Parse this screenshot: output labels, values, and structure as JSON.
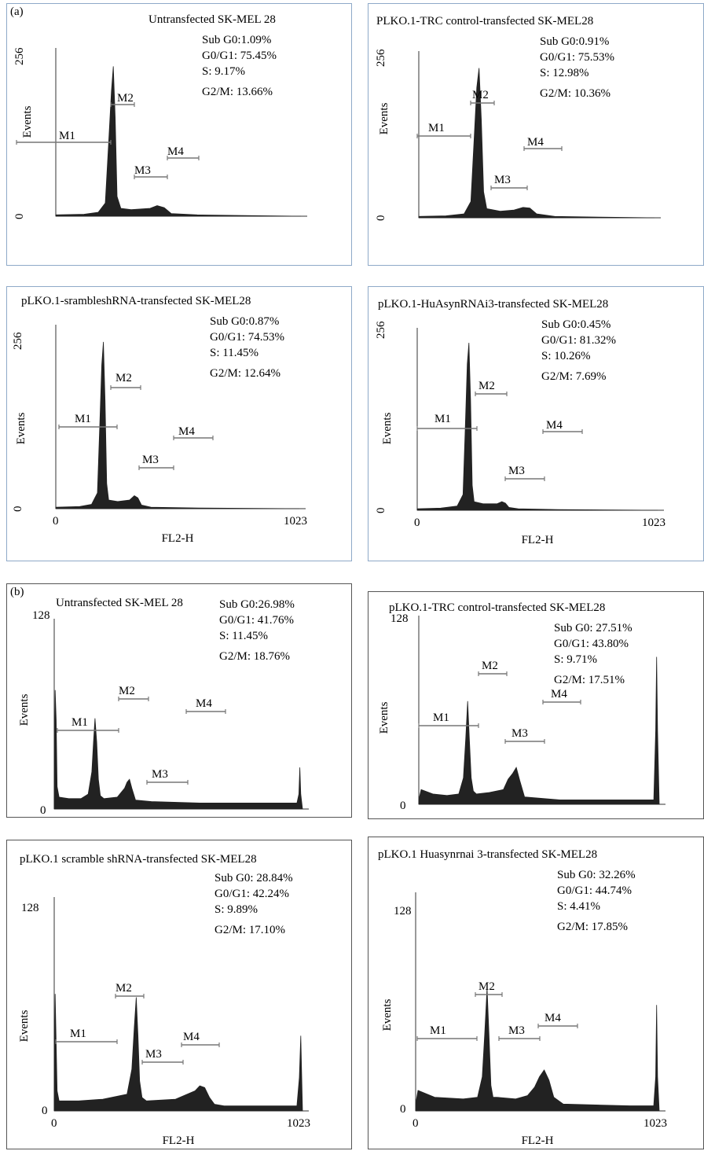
{
  "figure": {
    "section_a_label": "(a)",
    "section_b_label": "(b)",
    "y_axis_label": "Events",
    "x_axis_label": "FL2-H",
    "x_min_label": "0",
    "x_max_label": "1023",
    "marker_labels": [
      "M1",
      "M2",
      "M3",
      "M4"
    ],
    "colors": {
      "panel_border_a": "#8ea9c8",
      "panel_border_b": "#555555",
      "histogram_fill": "#222222",
      "marker_line": "#777777"
    }
  },
  "chart_data": [
    {
      "type": "area",
      "section": "a",
      "title": "Untransfected SK-MEL 28",
      "stats": [
        "Sub G0:1.09%",
        "G0/G1: 75.45%",
        "S: 9.17%",
        "G2/M: 13.66%"
      ],
      "ylim": [
        0,
        256
      ],
      "y_tick_labels": [
        "256",
        "0"
      ],
      "x_tick_labels": [],
      "x": [
        0,
        60,
        90,
        105,
        112,
        118,
        122,
        126,
        130,
        138,
        160,
        200,
        215,
        230,
        245,
        300,
        400,
        520
      ],
      "values": [
        2,
        3,
        6,
        20,
        110,
        190,
        228,
        150,
        30,
        12,
        10,
        12,
        16,
        13,
        4,
        2,
        1,
        0
      ]
    },
    {
      "type": "area",
      "section": "a",
      "title": "PLKO.1-TRC control-transfected SK-MEL28",
      "stats": [
        "Sub G0:0.91%",
        "G0/G1: 75.53%",
        "S: 12.98%",
        "G2/M: 10.36%"
      ],
      "ylim": [
        0,
        256
      ],
      "y_tick_labels": [
        "256",
        "0"
      ],
      "x_tick_labels": [],
      "x": [
        0,
        60,
        100,
        115,
        122,
        128,
        133,
        138,
        143,
        150,
        180,
        210,
        230,
        245,
        260,
        300,
        400,
        520
      ],
      "values": [
        2,
        3,
        6,
        25,
        120,
        200,
        230,
        150,
        40,
        14,
        10,
        12,
        16,
        15,
        6,
        2,
        1,
        0
      ]
    },
    {
      "type": "area",
      "section": "a",
      "title": "pLKO.1-srambleshRNA-transfected SK-MEL28",
      "stats": [
        "Sub G0:0.87%",
        "G0/G1: 74.53%",
        "S: 11.45%",
        "G2/M: 12.64%"
      ],
      "ylim": [
        0,
        256
      ],
      "y_tick_labels": [
        "256",
        "0"
      ],
      "x_tick_labels": [
        "0",
        "1023"
      ],
      "x": [
        0,
        100,
        150,
        175,
        185,
        193,
        200,
        207,
        214,
        222,
        260,
        310,
        330,
        345,
        360,
        400,
        600,
        1023
      ],
      "values": [
        2,
        3,
        6,
        22,
        120,
        200,
        232,
        150,
        35,
        12,
        10,
        12,
        18,
        15,
        5,
        2,
        1,
        0
      ]
    },
    {
      "type": "area",
      "section": "a",
      "title": "pLKO.1-HuAsynRNAi3-transfected SK-MEL28",
      "stats": [
        "Sub G0:0.45%",
        "G0/G1: 81.32%",
        "S: 10.26%",
        "G2/M: 7.69%"
      ],
      "ylim": [
        0,
        256
      ],
      "y_tick_labels": [
        "256",
        "0"
      ],
      "x_tick_labels": [
        "0",
        "1023"
      ],
      "x": [
        0,
        100,
        170,
        195,
        205,
        213,
        220,
        227,
        234,
        242,
        280,
        340,
        360,
        375,
        390,
        430,
        600,
        1023
      ],
      "values": [
        2,
        3,
        6,
        22,
        120,
        205,
        235,
        155,
        35,
        12,
        9,
        9,
        12,
        10,
        4,
        2,
        1,
        0
      ]
    },
    {
      "type": "area",
      "section": "b",
      "title": "Untransfected SK-MEL 28",
      "stats": [
        "Sub G0:26.98%",
        "G0/G1: 41.76%",
        "S: 11.45%",
        "G2/M: 18.76%"
      ],
      "ylim": [
        0,
        128
      ],
      "y_tick_labels": [
        "128",
        "0"
      ],
      "x_tick_labels": [],
      "x": [
        0,
        4,
        8,
        12,
        20,
        60,
        110,
        140,
        155,
        162,
        168,
        175,
        182,
        190,
        205,
        260,
        290,
        300,
        310,
        320,
        335,
        400,
        600,
        1000,
        1008,
        1012,
        1016,
        1023
      ],
      "values": [
        5,
        80,
        60,
        15,
        8,
        7,
        7,
        10,
        25,
        45,
        61,
        45,
        20,
        9,
        7,
        8,
        14,
        18,
        20,
        14,
        6,
        5,
        4,
        4,
        10,
        28,
        10,
        0
      ]
    },
    {
      "type": "area",
      "section": "b",
      "title": "pLKO.1-TRC control-transfected SK-MEL28",
      "stats": [
        "Sub G0: 27.51%",
        "G0/G1: 43.80%",
        "S: 9.71%",
        "G2/M: 17.51%"
      ],
      "ylim": [
        0,
        128
      ],
      "y_tick_labels": [
        "128",
        "0"
      ],
      "x_tick_labels": [],
      "x": [
        0,
        10,
        60,
        120,
        170,
        190,
        200,
        208,
        215,
        223,
        232,
        245,
        300,
        360,
        380,
        400,
        415,
        430,
        450,
        600,
        1000,
        1008,
        1012,
        1016,
        1023
      ],
      "values": [
        3,
        10,
        7,
        6,
        7,
        18,
        45,
        70,
        45,
        18,
        9,
        7,
        8,
        10,
        17,
        21,
        25,
        16,
        5,
        3,
        3,
        50,
        100,
        50,
        0
      ]
    },
    {
      "type": "area",
      "section": "b",
      "title": "pLKO.1 scramble shRNA-transfected SK-MEL28",
      "stats": [
        "Sub G0: 28.84%",
        "G0/G1: 42.24%",
        "S: 9.89%",
        "G2/M: 17.10%"
      ],
      "ylim": [
        0,
        128
      ],
      "y_tick_labels": [
        "128",
        "0"
      ],
      "x_tick_labels": [
        "0",
        "1023"
      ],
      "x": [
        0,
        4,
        8,
        12,
        20,
        100,
        200,
        300,
        320,
        330,
        338,
        345,
        352,
        362,
        380,
        500,
        580,
        600,
        620,
        640,
        660,
        700,
        900,
        1000,
        1010,
        1016,
        1023
      ],
      "values": [
        5,
        70,
        40,
        12,
        6,
        6,
        7,
        10,
        25,
        50,
        68,
        45,
        18,
        8,
        6,
        7,
        12,
        15,
        14,
        8,
        4,
        3,
        3,
        3,
        20,
        45,
        0
      ]
    },
    {
      "type": "area",
      "section": "b",
      "title": "pLKO.1 Huasynrnai 3-transfected SK-MEL28",
      "stats": [
        "Sub G0: 32.26%",
        "G0/G1: 44.74%",
        "S: 4.41%",
        "G2/M: 17.85%"
      ],
      "ylim": [
        0,
        128
      ],
      "y_tick_labels": [
        "128",
        "0"
      ],
      "x_tick_labels": [
        "0",
        "1023"
      ],
      "x": [
        0,
        10,
        80,
        200,
        260,
        280,
        290,
        300,
        308,
        316,
        325,
        340,
        420,
        470,
        500,
        520,
        540,
        560,
        580,
        620,
        900,
        1000,
        1008,
        1012,
        1016,
        1023
      ],
      "values": [
        4,
        12,
        8,
        7,
        8,
        20,
        45,
        72,
        45,
        15,
        8,
        8,
        7,
        9,
        14,
        20,
        24,
        18,
        8,
        4,
        3,
        3,
        20,
        62,
        20,
        0
      ]
    }
  ]
}
